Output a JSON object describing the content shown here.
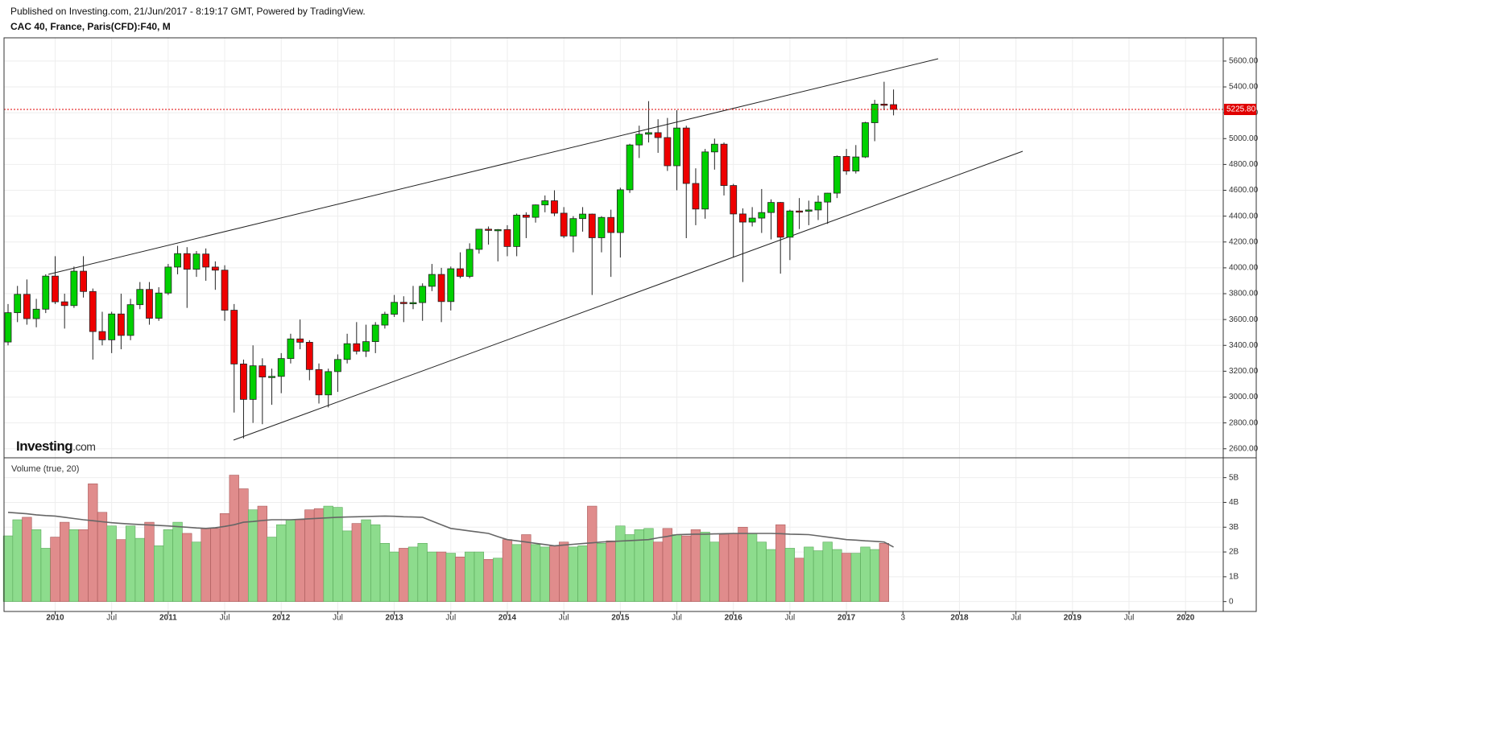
{
  "header": {
    "published": "Published on Investing.com, 21/Jun/2017 - 8:19:17 GMT, Powered by TradingView.",
    "symbol": "CAC 40, France, Paris(CFD):F40, M"
  },
  "chart_data": [
    {
      "type": "candlestick",
      "logo": "Investing",
      "logo_suffix": ".com",
      "x": [
        "2009-08",
        "2009-09",
        "2009-10",
        "2009-11",
        "2009-12",
        "2010-01",
        "2010-02",
        "2010-03",
        "2010-04",
        "2010-05",
        "2010-06",
        "2010-07",
        "2010-08",
        "2010-09",
        "2010-10",
        "2010-11",
        "2010-12",
        "2011-01",
        "2011-02",
        "2011-03",
        "2011-04",
        "2011-05",
        "2011-06",
        "2011-07",
        "2011-08",
        "2011-09",
        "2011-10",
        "2011-11",
        "2011-12",
        "2012-01",
        "2012-02",
        "2012-03",
        "2012-04",
        "2012-05",
        "2012-06",
        "2012-07",
        "2012-08",
        "2012-09",
        "2012-10",
        "2012-11",
        "2012-12",
        "2013-01",
        "2013-02",
        "2013-03",
        "2013-04",
        "2013-05",
        "2013-06",
        "2013-07",
        "2013-08",
        "2013-09",
        "2013-10",
        "2013-11",
        "2013-12",
        "2014-01",
        "2014-02",
        "2014-03",
        "2014-04",
        "2014-05",
        "2014-06",
        "2014-07",
        "2014-08",
        "2014-09",
        "2014-10",
        "2014-11",
        "2014-12",
        "2015-01",
        "2015-02",
        "2015-03",
        "2015-04",
        "2015-05",
        "2015-06",
        "2015-07",
        "2015-08",
        "2015-09",
        "2015-10",
        "2015-11",
        "2015-12",
        "2016-01",
        "2016-02",
        "2016-03",
        "2016-04",
        "2016-05",
        "2016-06",
        "2016-07",
        "2016-08",
        "2016-09",
        "2016-10",
        "2016-11",
        "2016-12",
        "2017-01",
        "2017-02",
        "2017-03",
        "2017-04",
        "2017-05",
        "2017-06"
      ],
      "open": [
        3426,
        3653,
        3795,
        3607,
        3680,
        3936,
        3737,
        3708,
        3974,
        3817,
        3507,
        3443,
        3643,
        3477,
        3715,
        3833,
        3610,
        3805,
        4006,
        4110,
        3989,
        4107,
        4006,
        3982,
        3672,
        3256,
        2982,
        3242,
        3155,
        3160,
        3298,
        3450,
        3424,
        3213,
        3017,
        3197,
        3291,
        3413,
        3355,
        3429,
        3557,
        3641,
        3733,
        3723,
        3731,
        3857,
        3949,
        3739,
        3993,
        3934,
        4143,
        4299,
        4295,
        4296,
        4165,
        4408,
        4391,
        4487,
        4519,
        4423,
        4246,
        4381,
        4416,
        4233,
        4390,
        4273,
        4604,
        4951,
        5034,
        5046,
        5008,
        4790,
        5082,
        4653,
        4455,
        4897,
        4957,
        4637,
        4417,
        4354,
        4385,
        4428,
        4506,
        4237,
        4440,
        4438,
        4448,
        4509,
        4578,
        4862,
        4749,
        4858,
        5123,
        5267,
        5263
      ],
      "high": [
        3720,
        3860,
        3910,
        3760,
        3950,
        4090,
        3800,
        4010,
        4090,
        3840,
        3660,
        3660,
        3800,
        3760,
        3890,
        3890,
        3850,
        4030,
        4170,
        4160,
        4130,
        4150,
        4050,
        4020,
        3720,
        3290,
        3400,
        3300,
        3220,
        3340,
        3490,
        3600,
        3440,
        3260,
        3220,
        3330,
        3490,
        3580,
        3560,
        3580,
        3660,
        3790,
        3780,
        3860,
        3880,
        4030,
        4000,
        4010,
        4120,
        4190,
        4300,
        4320,
        4300,
        4330,
        4420,
        4430,
        4490,
        4560,
        4600,
        4470,
        4400,
        4470,
        4420,
        4400,
        4450,
        4620,
        4960,
        5100,
        5290,
        5150,
        5160,
        5220,
        5100,
        4770,
        4920,
        5000,
        4970,
        4650,
        4460,
        4470,
        4610,
        4530,
        4510,
        4450,
        4540,
        4520,
        4560,
        4580,
        4870,
        4920,
        4950,
        5130,
        5300,
        5440,
        5380
      ],
      "low": [
        3400,
        3580,
        3560,
        3540,
        3650,
        3720,
        3530,
        3690,
        3770,
        3290,
        3400,
        3340,
        3370,
        3440,
        3680,
        3560,
        3590,
        3790,
        3950,
        3690,
        3930,
        3900,
        3830,
        3590,
        2880,
        2680,
        2800,
        2790,
        2940,
        3030,
        3260,
        3370,
        3130,
        2950,
        2920,
        3040,
        3260,
        3330,
        3310,
        3340,
        3530,
        3620,
        3580,
        3680,
        3590,
        3820,
        3580,
        3670,
        3920,
        3920,
        4110,
        4180,
        4050,
        4090,
        4090,
        4230,
        4350,
        4430,
        4400,
        4230,
        4120,
        4280,
        3790,
        4120,
        3930,
        4080,
        4580,
        4850,
        4970,
        4890,
        4750,
        4600,
        4230,
        4330,
        4380,
        4760,
        4560,
        4080,
        3890,
        4320,
        4270,
        4220,
        3955,
        4060,
        4300,
        4330,
        4370,
        4340,
        4540,
        4720,
        4730,
        4850,
        4980,
        5220,
        5180
      ],
      "close": [
        3653,
        3795,
        3607,
        3680,
        3936,
        3737,
        3708,
        3974,
        3817,
        3507,
        3443,
        3643,
        3477,
        3715,
        3833,
        3610,
        3805,
        4006,
        4110,
        3989,
        4107,
        4006,
        3982,
        3672,
        3256,
        2982,
        3242,
        3155,
        3160,
        3298,
        3450,
        3424,
        3213,
        3017,
        3197,
        3291,
        3413,
        3355,
        3429,
        3557,
        3641,
        3733,
        3723,
        3731,
        3857,
        3949,
        3739,
        3993,
        3934,
        4143,
        4299,
        4295,
        4296,
        4165,
        4408,
        4391,
        4487,
        4519,
        4423,
        4246,
        4381,
        4416,
        4233,
        4390,
        4273,
        4604,
        4951,
        5034,
        5046,
        5008,
        4790,
        5082,
        4653,
        4455,
        4897,
        4957,
        4637,
        4417,
        4354,
        4385,
        4428,
        4506,
        4237,
        4440,
        4438,
        4448,
        4509,
        4578,
        4862,
        4749,
        4858,
        5123,
        5267,
        5263,
        5226
      ],
      "up_color": "#00d000",
      "down_color": "#ee0000",
      "ylim": [
        2530,
        5780
      ],
      "yticks": [
        {
          "value": 2600,
          "label": "2600.00"
        },
        {
          "value": 2800,
          "label": "2800.00"
        },
        {
          "value": 3000,
          "label": "3000.00"
        },
        {
          "value": 3200,
          "label": "3200.00"
        },
        {
          "value": 3400,
          "label": "3400.00"
        },
        {
          "value": 3600,
          "label": "3600.00"
        },
        {
          "value": 3800,
          "label": "3800.00"
        },
        {
          "value": 4000,
          "label": "4000.00"
        },
        {
          "value": 4200,
          "label": "4200.00"
        },
        {
          "value": 4400,
          "label": "4400.00"
        },
        {
          "value": 4600,
          "label": "4600.00"
        },
        {
          "value": 4800,
          "label": "4800.00"
        },
        {
          "value": 5000,
          "label": "5000.00"
        },
        {
          "value": 5200,
          "label": "5200.00"
        },
        {
          "value": 5400,
          "label": "5400.00"
        },
        {
          "value": 5600,
          "label": "5600.00"
        }
      ],
      "xlim": [
        "2009-08",
        "2020-05"
      ],
      "xticks": [
        {
          "value": "2010-01",
          "label": "2010"
        },
        {
          "value": "2010-07",
          "label": "Jul"
        },
        {
          "value": "2011-01",
          "label": "2011"
        },
        {
          "value": "2011-07",
          "label": "Jul"
        },
        {
          "value": "2012-01",
          "label": "2012"
        },
        {
          "value": "2012-07",
          "label": "Jul"
        },
        {
          "value": "2013-01",
          "label": "2013"
        },
        {
          "value": "2013-07",
          "label": "Jul"
        },
        {
          "value": "2014-01",
          "label": "2014"
        },
        {
          "value": "2014-07",
          "label": "Jul"
        },
        {
          "value": "2015-01",
          "label": "2015"
        },
        {
          "value": "2015-07",
          "label": "Jul"
        },
        {
          "value": "2016-01",
          "label": "2016"
        },
        {
          "value": "2016-07",
          "label": "Jul"
        },
        {
          "value": "2017-01",
          "label": "2017"
        },
        {
          "value": "2017-07",
          "label": "3"
        },
        {
          "value": "2018-01",
          "label": "2018"
        },
        {
          "value": "2018-07",
          "label": "Jul"
        },
        {
          "value": "2019-01",
          "label": "2019"
        },
        {
          "value": "2019-07",
          "label": "Jul"
        },
        {
          "value": "2020-01",
          "label": "2020"
        }
      ],
      "last_price": {
        "value": 5225.8,
        "label": "5225.80"
      },
      "last_price_color": "#e00000",
      "grid": true
    },
    {
      "type": "volume",
      "title": "Volume (true, 20)",
      "values": [
        2.65,
        3.3,
        3.4,
        2.9,
        2.15,
        2.6,
        3.2,
        2.9,
        2.9,
        4.75,
        3.6,
        3.05,
        2.5,
        3.05,
        2.55,
        3.2,
        2.25,
        2.9,
        3.2,
        2.75,
        2.4,
        2.95,
        2.95,
        3.55,
        5.1,
        4.55,
        3.7,
        3.85,
        2.6,
        3.1,
        3.3,
        3.3,
        3.7,
        3.75,
        3.85,
        3.8,
        2.85,
        3.15,
        3.3,
        3.1,
        2.35,
        2.0,
        2.15,
        2.2,
        2.35,
        2.0,
        2.0,
        1.95,
        1.8,
        2.0,
        2.0,
        1.7,
        1.75,
        2.5,
        2.3,
        2.7,
        2.3,
        2.2,
        2.25,
        2.4,
        2.2,
        2.25,
        3.85,
        2.35,
        2.45,
        3.05,
        2.7,
        2.9,
        2.95,
        2.4,
        2.95,
        2.7,
        2.65,
        2.9,
        2.8,
        2.4,
        2.7,
        2.75,
        3.0,
        2.75,
        2.4,
        2.1,
        3.1,
        2.15,
        1.75,
        2.2,
        2.05,
        2.4,
        2.1,
        1.95,
        1.95,
        2.2,
        2.1,
        2.35,
        null
      ],
      "ma_values": [
        3.6,
        3.57,
        3.54,
        3.5,
        3.47,
        3.45,
        3.4,
        3.35,
        3.3,
        3.26,
        3.22,
        3.18,
        3.15,
        3.13,
        3.11,
        3.09,
        3.07,
        3.05,
        3.02,
        3.0,
        2.97,
        2.95,
        2.98,
        3.03,
        3.1,
        3.2,
        3.23,
        3.27,
        3.3,
        3.3,
        3.3,
        3.32,
        3.34,
        3.36,
        3.38,
        3.4,
        3.41,
        3.42,
        3.43,
        3.44,
        3.45,
        3.44,
        3.42,
        3.41,
        3.4,
        3.25,
        3.1,
        2.95,
        2.9,
        2.85,
        2.8,
        2.75,
        2.62,
        2.5,
        2.45,
        2.4,
        2.35,
        2.3,
        2.25,
        2.28,
        2.31,
        2.34,
        2.37,
        2.4,
        2.42,
        2.44,
        2.46,
        2.48,
        2.5,
        2.57,
        2.63,
        2.7,
        2.71,
        2.72,
        2.72,
        2.73,
        2.74,
        2.75,
        2.75,
        2.75,
        2.75,
        2.75,
        2.74,
        2.72,
        2.71,
        2.7,
        2.65,
        2.6,
        2.55,
        2.5,
        2.48,
        2.45,
        2.43,
        2.4,
        2.2
      ],
      "up_color": "#8ddc8d",
      "down_color": "#e08c8c",
      "ma_color": "#666666",
      "ylim": [
        -0.4,
        5.8
      ],
      "yticks": [
        0,
        {
          "value": 1,
          "label": "1B"
        },
        {
          "value": 2,
          "label": "2B"
        },
        {
          "value": 3,
          "label": "3B"
        },
        {
          "value": 4,
          "label": "4B"
        },
        {
          "value": 5,
          "label": "5B"
        }
      ],
      "grid": true
    }
  ]
}
